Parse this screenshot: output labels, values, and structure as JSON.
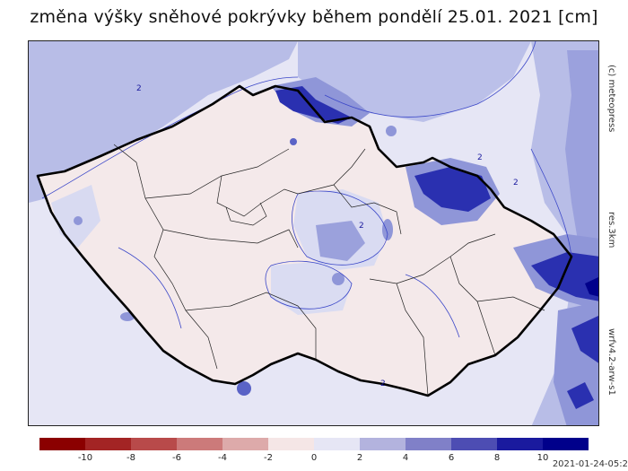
{
  "title": "změna výšky sněhové pokrývky během pondělí 25.01. 2021 [cm]",
  "side_labels": {
    "copyright": "(c) meteopress",
    "resolution": "res.3km",
    "model": "wrfv4.2-arw-s1"
  },
  "timestamp": "2021-01-24-05:2",
  "contour_labels": [
    "2",
    "2",
    "2",
    "2",
    "2"
  ],
  "legend": {
    "colors": [
      "#8b0000",
      "#a32424",
      "#b84a4a",
      "#cc7a7a",
      "#ddaaaa",
      "#f5e6e6",
      "#e6e6f5",
      "#b3b3de",
      "#8080c8",
      "#4d4db3",
      "#1a1a9e",
      "#00008b"
    ],
    "tick_labels": [
      "-10",
      "-8",
      "-6",
      "-4",
      "-2",
      "0",
      "2",
      "4",
      "6",
      "8",
      "10"
    ]
  },
  "colors": {
    "outside_light": "#e6e6f5",
    "inside_light": "#f4e9ea",
    "level2": "#b3b8e6",
    "level4": "#8f96d8",
    "level6": "#5a63c6",
    "level8": "#2a30b0",
    "level10": "#00008b",
    "border": "#000000"
  }
}
